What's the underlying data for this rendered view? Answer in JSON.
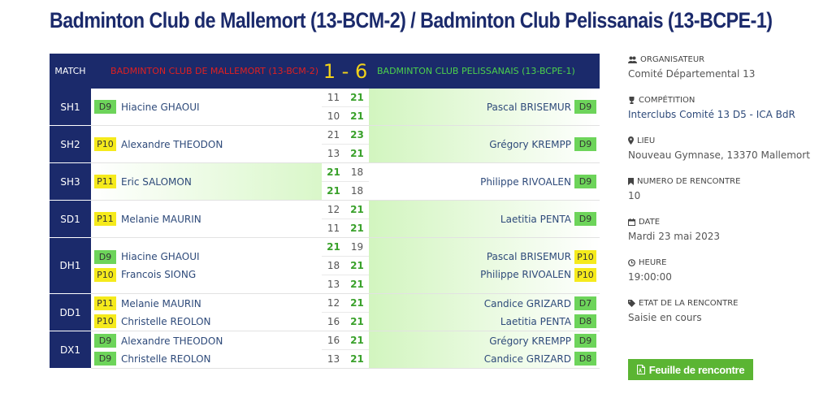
{
  "page": {
    "title": "Badminton Club de Mallemort (13-BCM-2) / Badminton Club Pelissanais (13-BCPE-1)"
  },
  "table": {
    "header": {
      "match_label": "MATCH",
      "team1": "BADMINTON CLUB DE MALLEMORT (13-BCM-2)",
      "score": "1 - 6",
      "team2": "BADMINTON CLUB PELISSANAIS (13-BCPE-1)"
    },
    "matches": [
      {
        "code": "SH1",
        "winner": 2,
        "team1_players": [
          {
            "name": "Hiacine GHAOUI",
            "rank": "D9",
            "rank_color": "#6dd45a"
          }
        ],
        "team2_players": [
          {
            "name": "Pascal BRISEMUR",
            "rank": "D9",
            "rank_color": "#6dd45a"
          }
        ],
        "sets": [
          {
            "t1": "11",
            "t2": "21"
          },
          {
            "t1": "10",
            "t2": "21"
          }
        ]
      },
      {
        "code": "SH2",
        "winner": 2,
        "team1_players": [
          {
            "name": "Alexandre THEODON",
            "rank": "P10",
            "rank_color": "#f5ea1c"
          }
        ],
        "team2_players": [
          {
            "name": "Grégory KREMPP",
            "rank": "D9",
            "rank_color": "#6dd45a"
          }
        ],
        "sets": [
          {
            "t1": "21",
            "t2": "23"
          },
          {
            "t1": "13",
            "t2": "21"
          }
        ]
      },
      {
        "code": "SH3",
        "winner": 1,
        "team1_players": [
          {
            "name": "Eric SALOMON",
            "rank": "P11",
            "rank_color": "#f5ea1c"
          }
        ],
        "team2_players": [
          {
            "name": "Philippe RIVOALEN",
            "rank": "D9",
            "rank_color": "#6dd45a"
          }
        ],
        "sets": [
          {
            "t1": "21",
            "t2": "18"
          },
          {
            "t1": "21",
            "t2": "18"
          }
        ]
      },
      {
        "code": "SD1",
        "winner": 2,
        "team1_players": [
          {
            "name": "Melanie MAURIN",
            "rank": "P11",
            "rank_color": "#f5ea1c"
          }
        ],
        "team2_players": [
          {
            "name": "Laetitia PENTA",
            "rank": "D9",
            "rank_color": "#6dd45a"
          }
        ],
        "sets": [
          {
            "t1": "12",
            "t2": "21"
          },
          {
            "t1": "11",
            "t2": "21"
          }
        ]
      },
      {
        "code": "DH1",
        "winner": 2,
        "team1_players": [
          {
            "name": "Hiacine GHAOUI",
            "rank": "D9",
            "rank_color": "#6dd45a"
          },
          {
            "name": "Francois SIONG",
            "rank": "P10",
            "rank_color": "#f5ea1c"
          }
        ],
        "team2_players": [
          {
            "name": "Pascal BRISEMUR",
            "rank": "P10",
            "rank_color": "#f5ea1c"
          },
          {
            "name": "Philippe RIVOALEN",
            "rank": "P10",
            "rank_color": "#f5ea1c"
          }
        ],
        "sets": [
          {
            "t1": "21",
            "t2": "19"
          },
          {
            "t1": "18",
            "t2": "21"
          },
          {
            "t1": "13",
            "t2": "21"
          }
        ]
      },
      {
        "code": "DD1",
        "winner": 2,
        "team1_players": [
          {
            "name": "Melanie MAURIN",
            "rank": "P11",
            "rank_color": "#f5ea1c"
          },
          {
            "name": "Christelle REOLON",
            "rank": "P10",
            "rank_color": "#f5ea1c"
          }
        ],
        "team2_players": [
          {
            "name": "Candice GRIZARD",
            "rank": "D7",
            "rank_color": "#6dd45a"
          },
          {
            "name": "Laetitia PENTA",
            "rank": "D8",
            "rank_color": "#6dd45a"
          }
        ],
        "sets": [
          {
            "t1": "12",
            "t2": "21"
          },
          {
            "t1": "16",
            "t2": "21"
          }
        ]
      },
      {
        "code": "DX1",
        "winner": 2,
        "team1_players": [
          {
            "name": "Alexandre THEODON",
            "rank": "D9",
            "rank_color": "#6dd45a"
          },
          {
            "name": "Christelle REOLON",
            "rank": "D9",
            "rank_color": "#6dd45a"
          }
        ],
        "team2_players": [
          {
            "name": "Grégory KREMPP",
            "rank": "D9",
            "rank_color": "#6dd45a"
          },
          {
            "name": "Candice GRIZARD",
            "rank": "D8",
            "rank_color": "#6dd45a"
          }
        ],
        "sets": [
          {
            "t1": "16",
            "t2": "21"
          },
          {
            "t1": "13",
            "t2": "21"
          }
        ]
      }
    ]
  },
  "sidebar": {
    "organisateur": {
      "label": "ORGANISATEUR",
      "value": "Comité Départemental 13",
      "icon": "users-icon"
    },
    "competition": {
      "label": "COMPÉTITION",
      "value": "Interclubs Comité 13 D5 - ICA BdR",
      "icon": "trophy-icon"
    },
    "lieu": {
      "label": "LIEU",
      "value": "Nouveau Gymnase, 13370 Mallemort",
      "icon": "map-marker-icon"
    },
    "numero": {
      "label": "NUMERO DE RENCONTRE",
      "value": "10",
      "icon": "bookmark-icon"
    },
    "date": {
      "label": "DATE",
      "value": "Mardi 23 mai 2023",
      "icon": "calendar-icon"
    },
    "heure": {
      "label": "HEURE",
      "value": "19:00:00",
      "icon": "clock-icon"
    },
    "etat": {
      "label": "ETAT DE LA RENCONTRE",
      "value": "Saisie en cours",
      "icon": "tag-icon"
    }
  },
  "sheet_button": {
    "label": "Feuille de rencontre",
    "icon": "pdf-file-icon"
  },
  "colors": {
    "header_bg": "#1b2a6b",
    "team1": "#e02020",
    "team2": "#4cd14c",
    "score": "#f2d21a",
    "win_score": "#3aa12b",
    "button": "#5bb533"
  }
}
